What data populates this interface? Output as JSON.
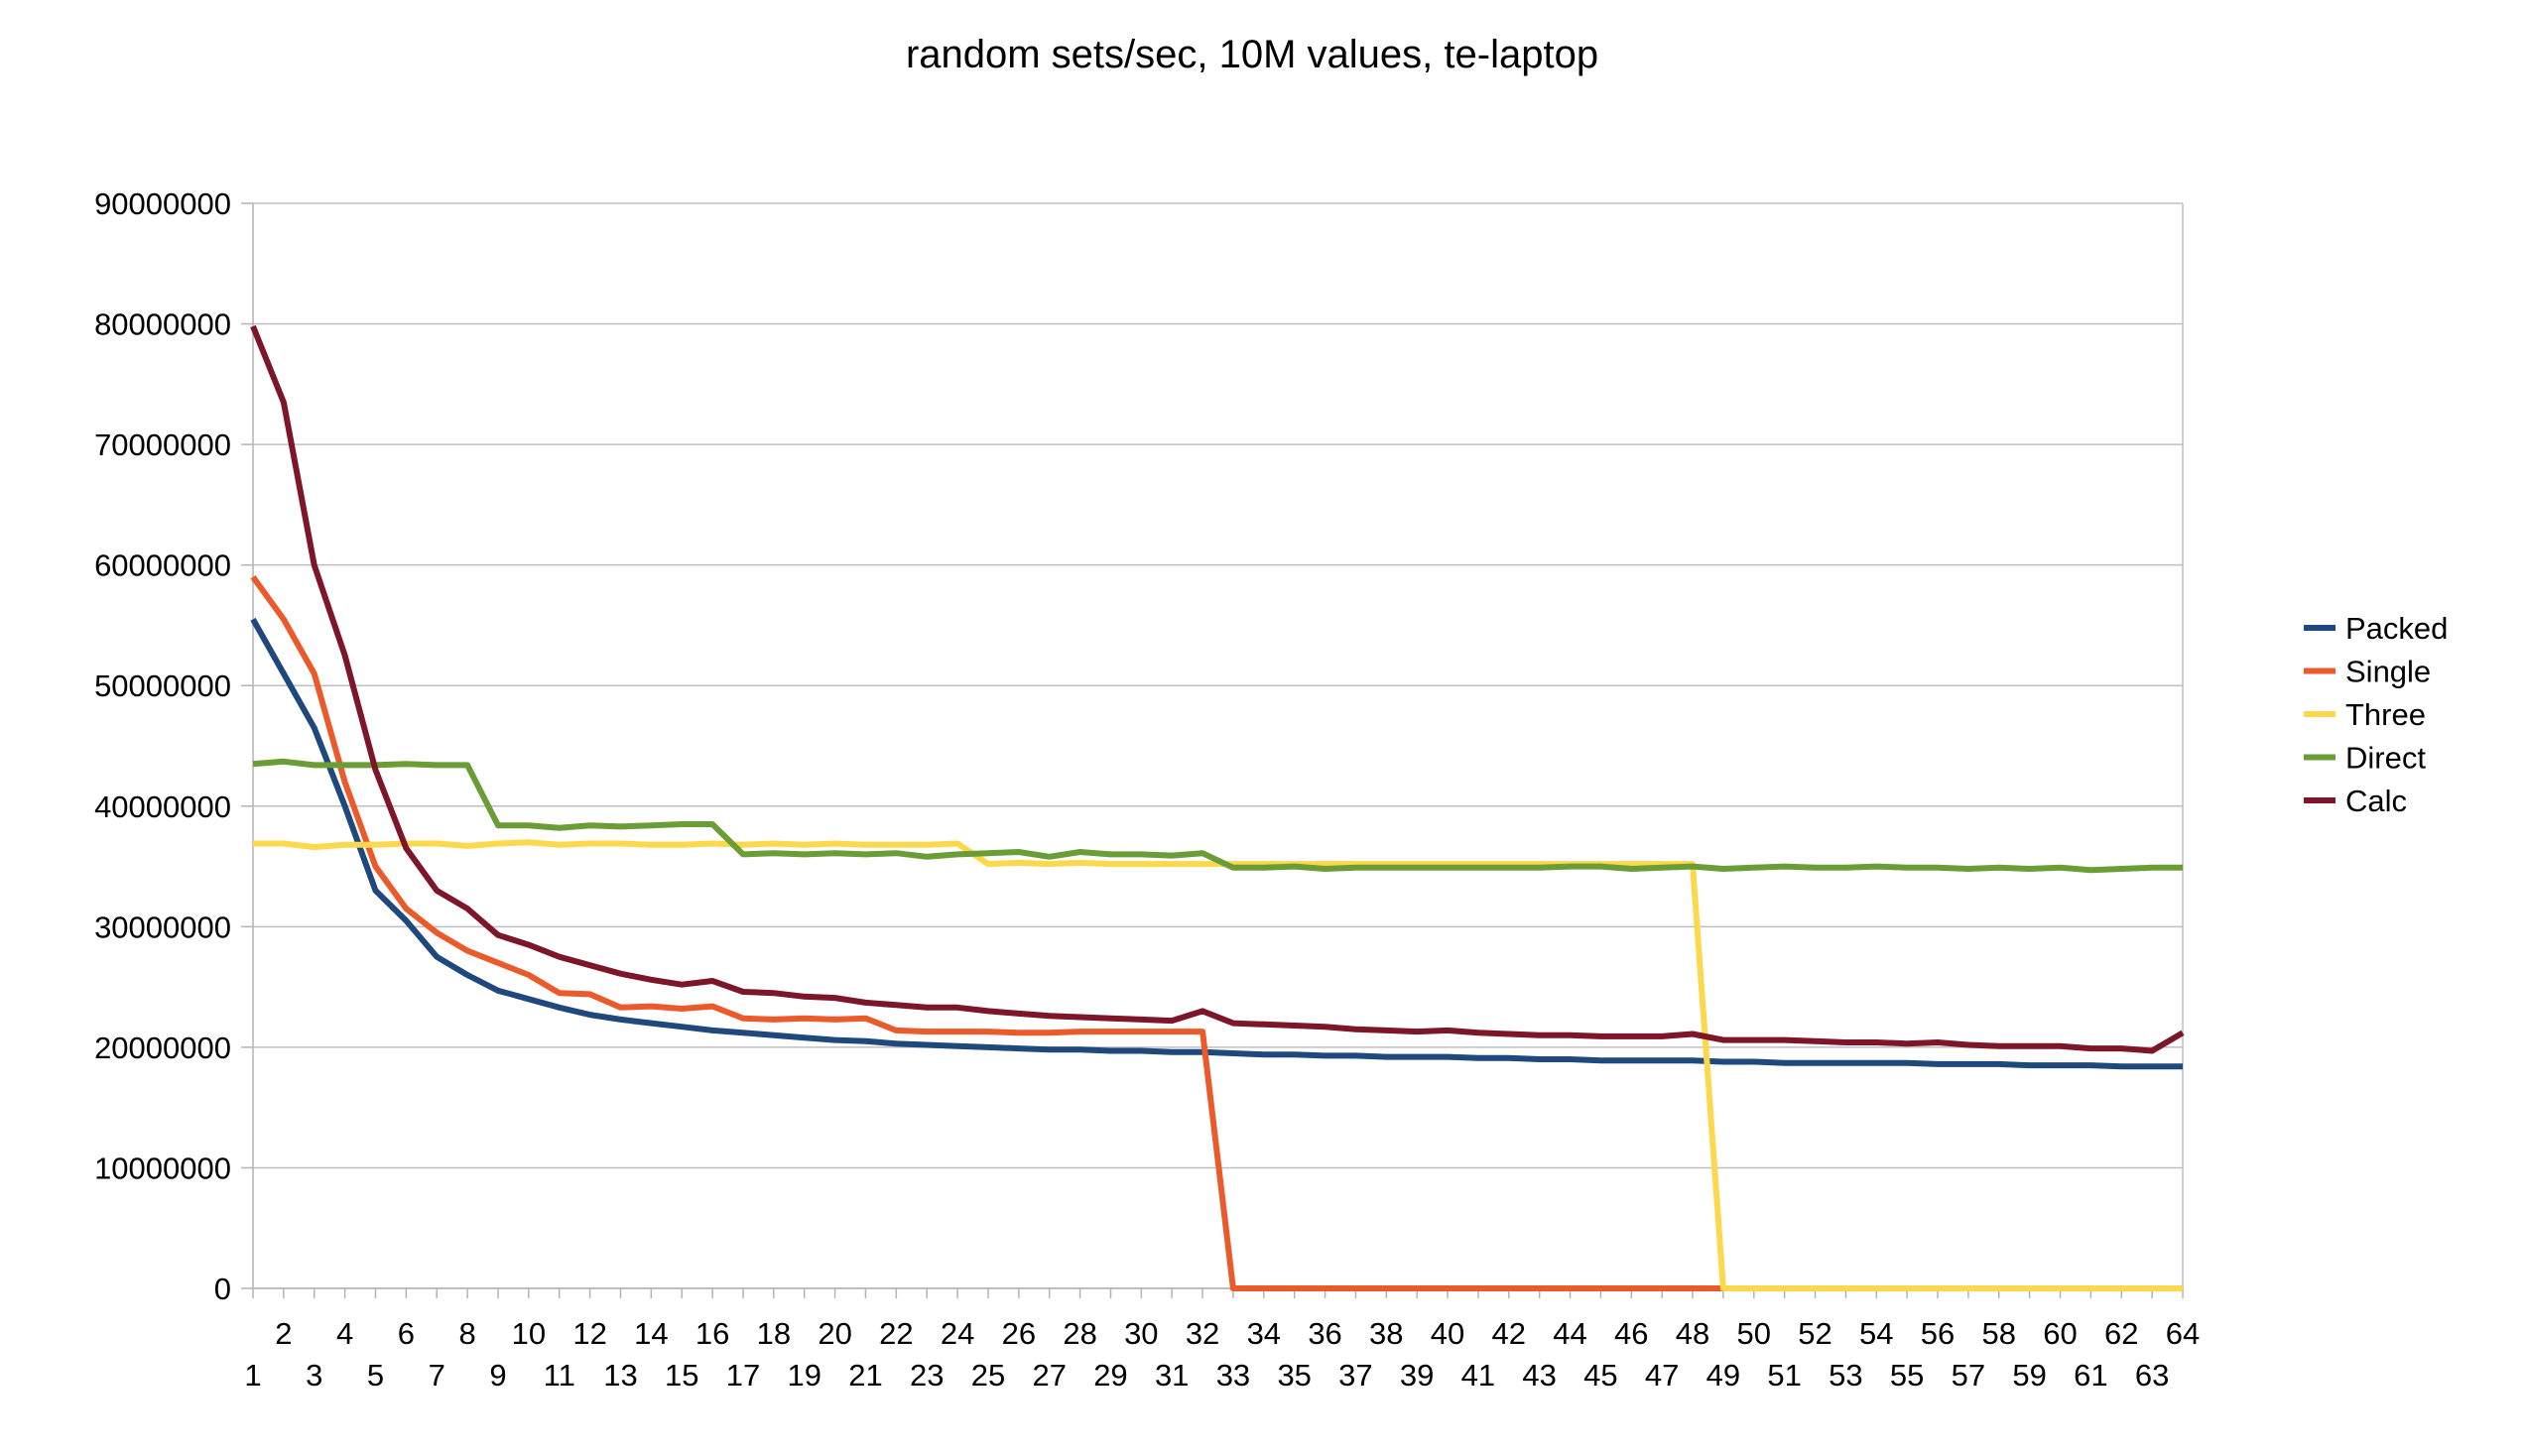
{
  "chart_data": {
    "type": "line",
    "title": "random sets/sec, 10M values, te-laptop",
    "xlabel": "",
    "ylabel": "",
    "ylim": [
      0,
      90000000
    ],
    "yticks": [
      0,
      10000000,
      20000000,
      30000000,
      40000000,
      50000000,
      60000000,
      70000000,
      80000000,
      90000000
    ],
    "ytick_labels": [
      "0",
      "10000000",
      "20000000",
      "30000000",
      "40000000",
      "50000000",
      "60000000",
      "70000000",
      "80000000",
      "90000000"
    ],
    "x": [
      1,
      2,
      3,
      4,
      5,
      6,
      7,
      8,
      9,
      10,
      11,
      12,
      13,
      14,
      15,
      16,
      17,
      18,
      19,
      20,
      21,
      22,
      23,
      24,
      25,
      26,
      27,
      28,
      29,
      30,
      31,
      32,
      33,
      34,
      35,
      36,
      37,
      38,
      39,
      40,
      41,
      42,
      43,
      44,
      45,
      46,
      47,
      48,
      49,
      50,
      51,
      52,
      53,
      54,
      55,
      56,
      57,
      58,
      59,
      60,
      61,
      62,
      63,
      64
    ],
    "grid": true,
    "legend_position": "right",
    "series": [
      {
        "name": "Packed",
        "color": "#1f497d",
        "values": [
          55500000,
          51000000,
          46500000,
          40000000,
          33000000,
          30500000,
          27500000,
          26000000,
          24700000,
          24000000,
          23300000,
          22700000,
          22300000,
          22000000,
          21700000,
          21400000,
          21200000,
          21000000,
          20800000,
          20600000,
          20500000,
          20300000,
          20200000,
          20100000,
          20000000,
          19900000,
          19800000,
          19800000,
          19700000,
          19700000,
          19600000,
          19600000,
          19500000,
          19400000,
          19400000,
          19300000,
          19300000,
          19200000,
          19200000,
          19200000,
          19100000,
          19100000,
          19000000,
          19000000,
          18900000,
          18900000,
          18900000,
          18900000,
          18800000,
          18800000,
          18700000,
          18700000,
          18700000,
          18700000,
          18700000,
          18600000,
          18600000,
          18600000,
          18500000,
          18500000,
          18500000,
          18400000,
          18400000,
          18400000
        ]
      },
      {
        "name": "Single",
        "color": "#ea5a2a",
        "values": [
          59000000,
          55500000,
          51000000,
          42000000,
          35000000,
          31500000,
          29500000,
          28000000,
          27000000,
          26000000,
          24500000,
          24400000,
          23300000,
          23400000,
          23200000,
          23400000,
          22400000,
          22300000,
          22400000,
          22300000,
          22400000,
          21400000,
          21300000,
          21300000,
          21300000,
          21200000,
          21200000,
          21300000,
          21300000,
          21300000,
          21300000,
          21300000,
          0,
          0,
          0,
          0,
          0,
          0,
          0,
          0,
          0,
          0,
          0,
          0,
          0,
          0,
          0,
          0,
          0,
          0,
          0,
          0,
          0,
          0,
          0,
          0,
          0,
          0,
          0,
          0,
          0,
          0,
          0,
          0
        ]
      },
      {
        "name": "Three",
        "color": "#fcd84c",
        "values": [
          36900000,
          36900000,
          36600000,
          36800000,
          36800000,
          36900000,
          36900000,
          36700000,
          36900000,
          37000000,
          36800000,
          36900000,
          36900000,
          36800000,
          36800000,
          36900000,
          36800000,
          36900000,
          36800000,
          36900000,
          36800000,
          36800000,
          36800000,
          36900000,
          35200000,
          35300000,
          35200000,
          35300000,
          35200000,
          35200000,
          35200000,
          35200000,
          35200000,
          35200000,
          35200000,
          35200000,
          35200000,
          35200000,
          35200000,
          35200000,
          35200000,
          35200000,
          35200000,
          35200000,
          35200000,
          35200000,
          35200000,
          35200000,
          0,
          0,
          0,
          0,
          0,
          0,
          0,
          0,
          0,
          0,
          0,
          0,
          0,
          0,
          0,
          0
        ]
      },
      {
        "name": "Direct",
        "color": "#6a9d35",
        "values": [
          43500000,
          43700000,
          43400000,
          43400000,
          43400000,
          43500000,
          43400000,
          43400000,
          38400000,
          38400000,
          38200000,
          38400000,
          38300000,
          38400000,
          38500000,
          38500000,
          36000000,
          36100000,
          36000000,
          36100000,
          36000000,
          36100000,
          35800000,
          36000000,
          36100000,
          36200000,
          35800000,
          36200000,
          36000000,
          36000000,
          35900000,
          36100000,
          34900000,
          34900000,
          35000000,
          34800000,
          34900000,
          34900000,
          34900000,
          34900000,
          34900000,
          34900000,
          34900000,
          35000000,
          35000000,
          34800000,
          34900000,
          35000000,
          34800000,
          34900000,
          35000000,
          34900000,
          34900000,
          35000000,
          34900000,
          34900000,
          34800000,
          34900000,
          34800000,
          34900000,
          34700000,
          34800000,
          34900000,
          34900000
        ]
      },
      {
        "name": "Calc",
        "color": "#7d1628",
        "values": [
          79800000,
          73500000,
          60000000,
          52500000,
          43000000,
          36500000,
          33000000,
          31500000,
          29300000,
          28500000,
          27500000,
          26800000,
          26100000,
          25600000,
          25200000,
          25500000,
          24600000,
          24500000,
          24200000,
          24100000,
          23700000,
          23500000,
          23300000,
          23300000,
          23000000,
          22800000,
          22600000,
          22500000,
          22400000,
          22300000,
          22200000,
          23000000,
          22000000,
          21900000,
          21800000,
          21700000,
          21500000,
          21400000,
          21300000,
          21400000,
          21200000,
          21100000,
          21000000,
          21000000,
          20900000,
          20900000,
          20900000,
          21100000,
          20600000,
          20600000,
          20600000,
          20500000,
          20400000,
          20400000,
          20300000,
          20400000,
          20200000,
          20100000,
          20100000,
          20100000,
          19900000,
          19900000,
          19700000,
          21200000
        ]
      }
    ]
  }
}
